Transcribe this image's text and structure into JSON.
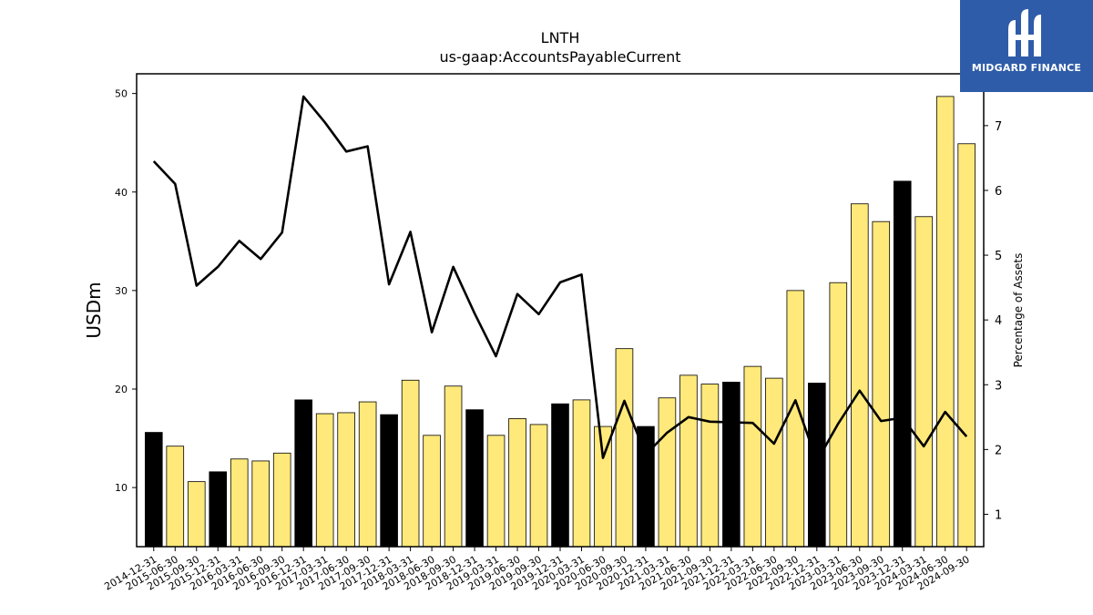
{
  "title": "LNTH",
  "subtitle": "us-gaap:AccountsPayableCurrent",
  "logo_text": "MIDGARD FINANCE",
  "chart_data": {
    "type": "bar",
    "title": "LNTH",
    "subtitle": "us-gaap:AccountsPayableCurrent",
    "ylabel": "USDm",
    "y2label": "Percentage of Assets",
    "ylim": [
      4,
      52
    ],
    "y2lim": [
      0.5,
      7.8
    ],
    "yticks": [
      10,
      20,
      30,
      40,
      50
    ],
    "y2ticks": [
      1,
      2,
      3,
      4,
      5,
      6,
      7
    ],
    "categories": [
      "2014-12-31",
      "2015-06-30",
      "2015-09-30",
      "2015-12-31",
      "2016-03-31",
      "2016-06-30",
      "2016-09-30",
      "2016-12-31",
      "2017-03-31",
      "2017-06-30",
      "2017-09-30",
      "2017-12-31",
      "2018-03-31",
      "2018-06-30",
      "2018-09-30",
      "2018-12-31",
      "2019-03-31",
      "2019-06-30",
      "2019-09-30",
      "2019-12-31",
      "2020-03-31",
      "2020-06-30",
      "2020-09-30",
      "2020-12-31",
      "2021-03-31",
      "2021-06-30",
      "2021-09-30",
      "2021-12-31",
      "2022-03-31",
      "2022-06-30",
      "2022-09-30",
      "2022-12-31",
      "2023-03-31",
      "2023-06-30",
      "2023-09-30",
      "2023-12-31",
      "2024-03-31",
      "2024-06-30",
      "2024-09-30"
    ],
    "series": [
      {
        "type": "bar",
        "values": [
          15.6,
          14.2,
          10.6,
          11.6,
          12.9,
          12.7,
          13.5,
          18.9,
          17.5,
          17.6,
          18.7,
          17.4,
          20.9,
          15.3,
          20.3,
          17.9,
          15.3,
          17.0,
          16.4,
          18.5,
          18.9,
          16.2,
          24.1,
          16.2,
          19.1,
          21.4,
          20.5,
          20.7,
          22.3,
          21.1,
          30.0,
          20.6,
          30.8,
          38.8,
          37.0,
          41.1,
          37.5,
          49.7,
          44.9
        ],
        "bar_colors": [
          "#000000",
          "#ffe97a",
          "#ffe97a",
          "#000000",
          "#ffe97a",
          "#ffe97a",
          "#ffe97a",
          "#000000",
          "#ffe97a",
          "#ffe97a",
          "#ffe97a",
          "#000000",
          "#ffe97a",
          "#ffe97a",
          "#ffe97a",
          "#000000",
          "#ffe97a",
          "#ffe97a",
          "#ffe97a",
          "#000000",
          "#ffe97a",
          "#ffe97a",
          "#ffe97a",
          "#000000",
          "#ffe97a",
          "#ffe97a",
          "#ffe97a",
          "#000000",
          "#ffe97a",
          "#ffe97a",
          "#ffe97a",
          "#000000",
          "#ffe97a",
          "#ffe97a",
          "#ffe97a",
          "#000000",
          "#ffe97a",
          "#ffe97a",
          "#ffe97a"
        ]
      },
      {
        "type": "line",
        "axis": "right",
        "color": "#000000",
        "values": [
          6.45,
          6.1,
          4.53,
          4.82,
          5.22,
          4.94,
          5.35,
          7.45,
          7.05,
          6.6,
          6.68,
          4.55,
          5.36,
          3.81,
          4.82,
          4.1,
          3.44,
          4.4,
          4.09,
          4.58,
          4.7,
          1.87,
          2.75,
          1.92,
          2.26,
          2.5,
          2.43,
          2.42,
          2.41,
          2.09,
          2.76,
          1.82,
          2.4,
          2.91,
          2.44,
          2.49,
          2.05,
          2.58,
          2.2
        ]
      }
    ],
    "colors": {
      "highlight": "#000000",
      "normal": "#ffe97a",
      "line": "#000000",
      "logo_bg": "#2f5ca8"
    }
  }
}
